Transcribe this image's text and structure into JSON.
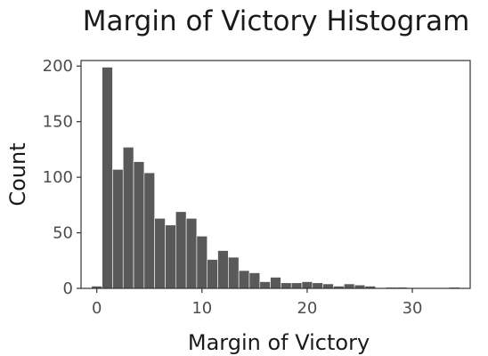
{
  "chart_data": {
    "type": "bar",
    "title": "Margin of Victory Histogram",
    "xlabel": "Margin of Victory",
    "ylabel": "Count",
    "xlim": [
      -1.5,
      35.5
    ],
    "ylim": [
      0,
      205
    ],
    "x_ticks": [
      0,
      10,
      20,
      30
    ],
    "y_ticks": [
      0,
      50,
      100,
      150,
      200
    ],
    "bin_width": 1,
    "grid": false,
    "bar_color": "#595959",
    "bins": [
      {
        "x": 0,
        "count": 2
      },
      {
        "x": 1,
        "count": 199
      },
      {
        "x": 2,
        "count": 107
      },
      {
        "x": 3,
        "count": 127
      },
      {
        "x": 4,
        "count": 114
      },
      {
        "x": 5,
        "count": 104
      },
      {
        "x": 6,
        "count": 63
      },
      {
        "x": 7,
        "count": 57
      },
      {
        "x": 8,
        "count": 69
      },
      {
        "x": 9,
        "count": 63
      },
      {
        "x": 10,
        "count": 47
      },
      {
        "x": 11,
        "count": 26
      },
      {
        "x": 12,
        "count": 34
      },
      {
        "x": 13,
        "count": 28
      },
      {
        "x": 14,
        "count": 16
      },
      {
        "x": 15,
        "count": 14
      },
      {
        "x": 16,
        "count": 6
      },
      {
        "x": 17,
        "count": 10
      },
      {
        "x": 18,
        "count": 5
      },
      {
        "x": 19,
        "count": 5
      },
      {
        "x": 20,
        "count": 6
      },
      {
        "x": 21,
        "count": 5
      },
      {
        "x": 22,
        "count": 4
      },
      {
        "x": 23,
        "count": 2
      },
      {
        "x": 24,
        "count": 4
      },
      {
        "x": 25,
        "count": 3
      },
      {
        "x": 26,
        "count": 2
      },
      {
        "x": 27,
        "count": 0
      },
      {
        "x": 28,
        "count": 1
      },
      {
        "x": 29,
        "count": 1
      },
      {
        "x": 30,
        "count": 0
      },
      {
        "x": 31,
        "count": 0
      },
      {
        "x": 32,
        "count": 0
      },
      {
        "x": 33,
        "count": 0
      },
      {
        "x": 34,
        "count": 1
      }
    ]
  }
}
